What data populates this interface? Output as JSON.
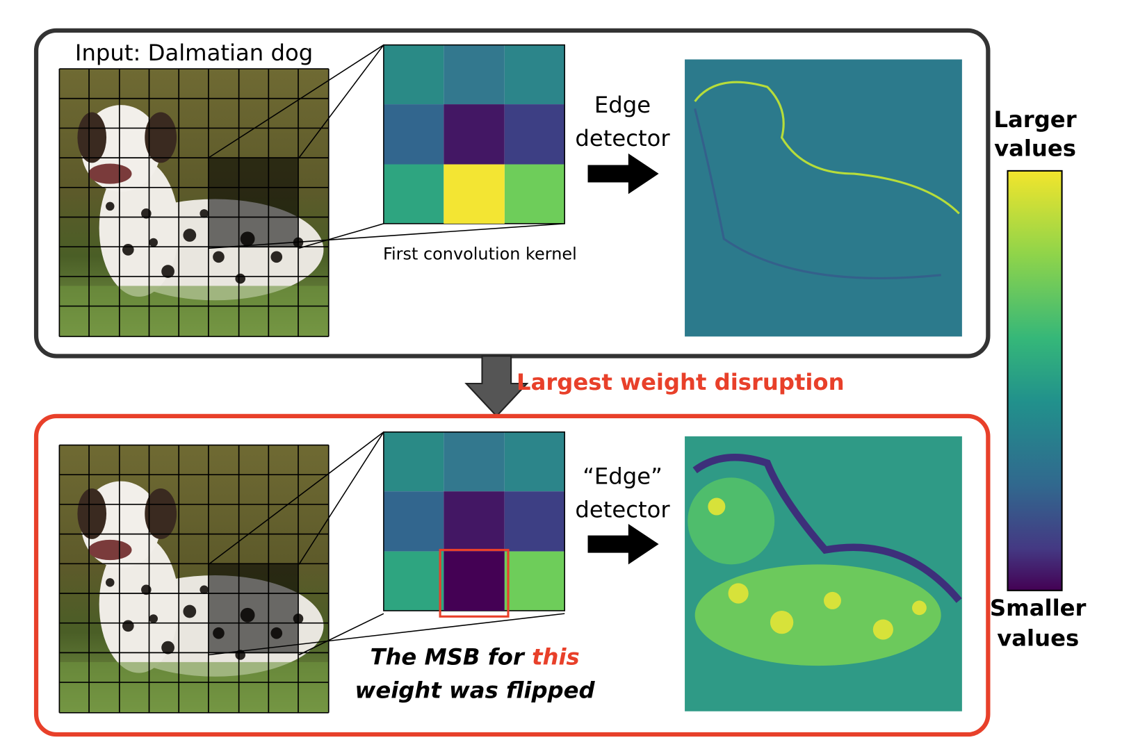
{
  "top_panel": {
    "input_title": "Input: Dalmatian dog",
    "detector_label": [
      "Edge",
      "detector"
    ],
    "kernel_caption": "First convolution kernel"
  },
  "transition": {
    "label": "Largest weight disruption"
  },
  "bottom_panel": {
    "detector_label": [
      "“Edge”",
      "detector"
    ],
    "caption": {
      "line1_start": "The MSB for ",
      "line1_highlight": "this",
      "line2": "weight was flipped"
    }
  },
  "colorbar": {
    "top_label": [
      "Larger",
      "values"
    ],
    "bottom_label": [
      "Smaller",
      "values"
    ]
  }
}
